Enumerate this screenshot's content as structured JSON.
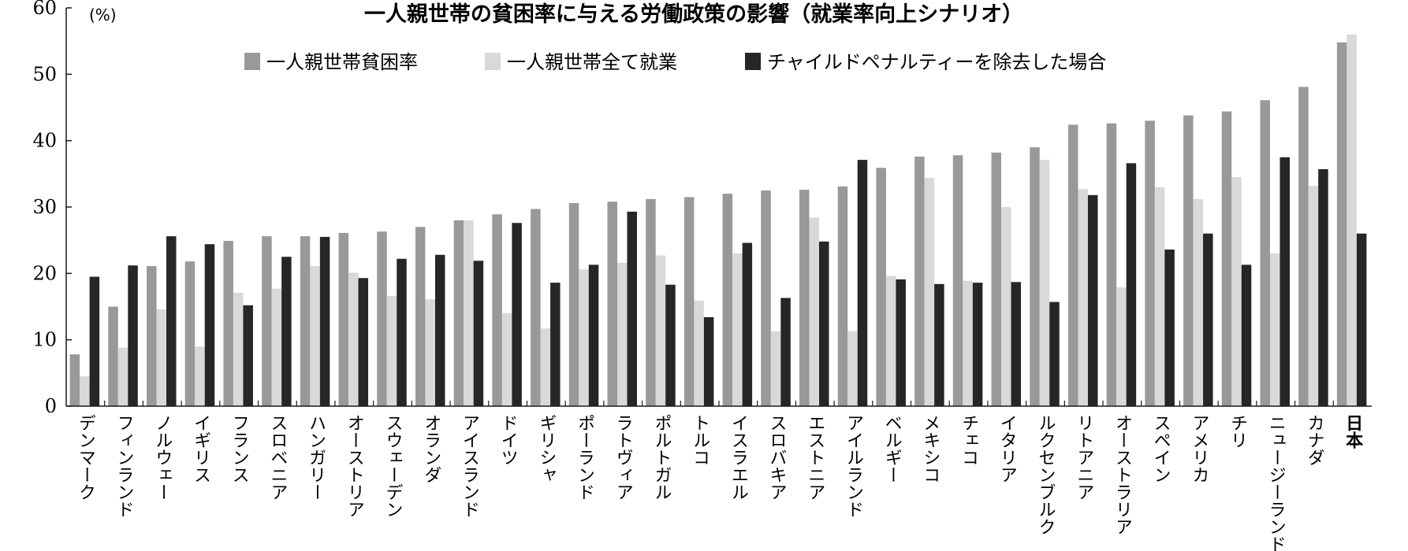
{
  "chart_data": {
    "type": "bar",
    "title": "一人親世帯の貧困率に与える労働政策の影響（就業率向上シナリオ）",
    "unit_label": "(%)",
    "ylim": [
      0,
      60
    ],
    "yticks": [
      "0",
      "10",
      "20",
      "30",
      "40",
      "50",
      "60"
    ],
    "grid": false,
    "legend_position": "top",
    "highlight_category": "日本",
    "categories": [
      "デンマーク",
      "フィンランド",
      "ノルウェー",
      "イギリス",
      "フランス",
      "スロベニア",
      "ハンガリー",
      "オーストリア",
      "スウェーデン",
      "オランダ",
      "アイスランド",
      "ドイツ",
      "ギリシャ",
      "ポーランド",
      "ラトヴィア",
      "ポルトガル",
      "トルコ",
      "イスラエル",
      "スロバキア",
      "エストニア",
      "アイルランド",
      "ベルギー",
      "メキシコ",
      "チェコ",
      "イタリア",
      "ルクセンブルク",
      "リトアニア",
      "オーストラリア",
      "スペイン",
      "アメリカ",
      "チリ",
      "ニュージーランド",
      "カナダ",
      "日本"
    ],
    "series": [
      {
        "name": "一人親世帯貧困率",
        "color": "#999999",
        "values": [
          7.8,
          15.0,
          21.1,
          21.8,
          24.9,
          25.6,
          25.6,
          26.1,
          26.3,
          27.0,
          28.0,
          28.9,
          29.7,
          30.6,
          30.8,
          31.2,
          31.5,
          32.0,
          32.5,
          32.6,
          33.1,
          35.9,
          37.6,
          37.8,
          38.2,
          39.0,
          42.4,
          42.6,
          43.0,
          43.8,
          44.4,
          46.1,
          48.1,
          54.8
        ]
      },
      {
        "name": "一人親世帯全て就業",
        "color": "#d9d9d9",
        "values": [
          4.5,
          8.8,
          14.6,
          9.0,
          17.1,
          17.7,
          21.1,
          20.1,
          16.6,
          16.1,
          28.0,
          14.0,
          11.7,
          20.6,
          21.6,
          22.7,
          15.9,
          23.0,
          11.3,
          28.4,
          11.3,
          19.6,
          34.4,
          18.9,
          30.0,
          37.1,
          32.7,
          17.9,
          33.0,
          31.2,
          34.5,
          23.0,
          33.2,
          56.0
        ]
      },
      {
        "name": "チャイルドペナルティーを除去した場合",
        "color": "#262626",
        "values": [
          19.5,
          21.2,
          25.6,
          24.4,
          15.2,
          22.5,
          25.5,
          19.3,
          22.2,
          22.8,
          21.9,
          27.6,
          18.6,
          21.3,
          29.3,
          18.3,
          13.4,
          24.6,
          16.3,
          24.8,
          37.1,
          19.1,
          18.4,
          18.6,
          18.7,
          15.7,
          31.8,
          36.6,
          23.6,
          26.0,
          21.3,
          37.5,
          35.7,
          26.0
        ]
      }
    ]
  }
}
